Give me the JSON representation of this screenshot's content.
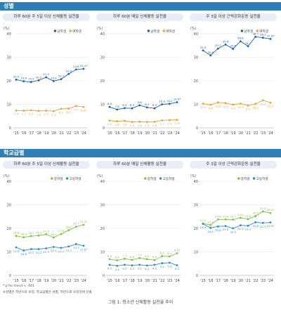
{
  "sections": [
    {
      "label": "성별"
    },
    {
      "label": "학교급별"
    }
  ],
  "chart_data": [
    {
      "type": "line",
      "title": "하루 60분 주 5일 이상 신체활동 실천율",
      "ylabel": "(%)",
      "ylim": [
        0,
        40
      ],
      "yticks": [
        0,
        10,
        20,
        30,
        40
      ],
      "categories": [
        "'15",
        "'16",
        "'17",
        "'18",
        "'19",
        "'20",
        "'21",
        "'22",
        "'23",
        "'24"
      ],
      "series": [
        {
          "name": "남학생",
          "color": "#1d5fa3",
          "values": [
            20.5,
            19.8,
            19.5,
            20.2,
            21.5,
            19.9,
            20.7,
            22.9,
            24.8,
            25.1
          ],
          "labels": [
            "20.5",
            "19.8",
            "19.5",
            "20.2",
            "21.5",
            "19.9",
            "20.7",
            "22.9",
            "24.8",
            "25.1*"
          ]
        },
        {
          "name": "여학생",
          "color": "#f0a030",
          "values": [
            7.4,
            7.3,
            7.5,
            7.2,
            7.3,
            7.1,
            8.1,
            8.2,
            9.3,
            8.9
          ],
          "labels": [
            "7.4",
            "7.3",
            "7.5",
            "7.2",
            "7.3",
            "7.1",
            "8.1",
            "8.2",
            "9.3",
            "8.9*"
          ]
        }
      ]
    },
    {
      "type": "line",
      "title": "하루 60분 매일 신체활동 실천율",
      "ylabel": "(%)",
      "ylim": [
        0,
        40
      ],
      "yticks": [
        0,
        10,
        20,
        30,
        40
      ],
      "categories": [
        "'15",
        "'16",
        "'17",
        "'18",
        "'19",
        "'20",
        "'21",
        "'22",
        "'23",
        "'24"
      ],
      "series": [
        {
          "name": "남학생",
          "color": "#1d5fa3",
          "values": [
            8.9,
            7.8,
            8.4,
            8.3,
            9.6,
            8.7,
            8.3,
            10.0,
            10.2,
            10.9
          ],
          "labels": [
            "8.9",
            "7.8",
            "8.4",
            "8.3",
            "9.6",
            "8.7",
            "8.3",
            "10.0",
            "10.2",
            "10.9*"
          ]
        },
        {
          "name": "여학생",
          "color": "#f0a030",
          "values": [
            3.1,
            2.8,
            3.0,
            2.5,
            2.6,
            2.5,
            2.6,
            3.2,
            3.3,
            3.4
          ],
          "labels": [
            "3.1",
            "2.8",
            "3.0",
            "2.5",
            "2.6",
            "2.5",
            "2.6",
            "3.2",
            "3.3",
            "3.4*"
          ]
        }
      ]
    },
    {
      "type": "line",
      "title": "주 3일 이상 근력강화운동 실천율",
      "ylabel": "(%)",
      "ylim": [
        0,
        40
      ],
      "yticks": [
        0,
        10,
        20,
        30,
        40
      ],
      "categories": [
        "'15",
        "'16",
        "'17",
        "'18",
        "'19",
        "'20",
        "'21",
        "'22",
        "'23",
        "'24"
      ],
      "series": [
        {
          "name": "남학생",
          "color": "#1d5fa3",
          "values": [
            32.9,
            30.8,
            33.7,
            35.4,
            33.6,
            36.8,
            34.7,
            38.7,
            38.3,
            37.8
          ],
          "labels": [
            "32.9",
            "30.8",
            "33.7",
            "35.4",
            "33.6",
            "36.8",
            "34.7",
            "38.7",
            "38.3",
            "37.8*"
          ]
        },
        {
          "name": "여학생",
          "color": "#f0a030",
          "values": [
            10.3,
            9.8,
            10.8,
            10.5,
            9.9,
            10.3,
            9.5,
            10.2,
            11.7,
            10.7
          ],
          "labels": [
            "10.3",
            "9.8",
            "10.8",
            "10.5",
            "9.9",
            "10.3",
            "9.5",
            "10.2",
            "11.7",
            "10.7"
          ]
        }
      ]
    },
    {
      "type": "line",
      "title": "하루 60분 주 5일 이상 신체활동 실천율",
      "ylabel": "(%)",
      "ylim": [
        0,
        40
      ],
      "yticks": [
        0,
        10,
        20,
        30,
        40
      ],
      "categories": [
        "'15",
        "'16",
        "'17",
        "'18",
        "'19",
        "'20",
        "'21",
        "'22",
        "'23",
        "'24"
      ],
      "series": [
        {
          "name": "중학생",
          "color": "#7cc242",
          "values": [
            16.8,
            16.2,
            16.7,
            16.9,
            17.5,
            16.1,
            17.6,
            19.2,
            20.7,
            21.5
          ],
          "labels": [
            "16.8",
            "16.2",
            "16.7",
            "16.9",
            "17.5",
            "16.1",
            "17.6",
            "19.2",
            "20.7",
            "21.5*"
          ]
        },
        {
          "name": "고등학생",
          "color": "#2a8ccd",
          "values": [
            11.9,
            10.6,
            11.2,
            11.2,
            11.5,
            12.1,
            11.7,
            12.3,
            13.3,
            12.6
          ],
          "labels": [
            "11.9",
            "10.6",
            "11.2",
            "11.2",
            "11.5",
            "12.1",
            "11.7",
            "12.3",
            "13.3",
            "12.6*"
          ]
        }
      ]
    },
    {
      "type": "line",
      "title": "하루 60분 매일 신체활동 실천율",
      "ylabel": "(%)",
      "ylim": [
        0,
        40
      ],
      "yticks": [
        0,
        10,
        20,
        30,
        40
      ],
      "categories": [
        "'15",
        "'16",
        "'17",
        "'18",
        "'19",
        "'20",
        "'21",
        "'22",
        "'23",
        "'24"
      ],
      "series": [
        {
          "name": "중학생",
          "color": "#7cc242",
          "values": [
            6.9,
            6.4,
            7.1,
            6.6,
            7.4,
            6.9,
            6.5,
            8.2,
            8.1,
            9.4
          ],
          "labels": [
            "6.9",
            "6.4",
            "7.1",
            "6.6",
            "7.4",
            "6.9",
            "6.5",
            "8.2",
            "8.1",
            "9.4*"
          ]
        },
        {
          "name": "고등학생",
          "color": "#2a8ccd",
          "values": [
            4.5,
            4.1,
            4.5,
            4.3,
            4.5,
            4.2,
            4.5,
            5.2,
            5.4,
            4.3
          ],
          "labels": [
            "4.5",
            "4.1",
            "4.5",
            "4.3",
            "4.5",
            "4.2",
            "4.5",
            "5.2",
            "5.4",
            "4.3"
          ]
        }
      ]
    },
    {
      "type": "line",
      "title": "주 3일 이상 근력강화운동 실천율",
      "ylabel": "(%)",
      "ylim": [
        0,
        40
      ],
      "yticks": [
        0,
        10,
        20,
        30,
        40
      ],
      "categories": [
        "'15",
        "'16",
        "'17",
        "'18",
        "'19",
        "'20",
        "'21",
        "'22",
        "'23",
        "'24"
      ],
      "series": [
        {
          "name": "중학생",
          "color": "#7cc242",
          "values": [
            22.1,
            21.4,
            23.8,
            23.8,
            23.7,
            24.5,
            23.9,
            25.2,
            27.2,
            26.5
          ],
          "labels": [
            "22.1",
            "21.4",
            "23.8",
            "23.8",
            "23.7",
            "24.5",
            "23.9",
            "25.2",
            "27.2",
            "26.5*"
          ]
        },
        {
          "name": "고등학생",
          "color": "#2a8ccd",
          "values": [
            21.9,
            20.2,
            20.8,
            21.0,
            20.0,
            21.3,
            21.1,
            22.6,
            22.3,
            22.5
          ],
          "labels": [
            "21.9",
            "20.2",
            "20.8",
            "21.0",
            "20.0",
            "21.3",
            "21.1",
            "22.6",
            "22.3",
            "22.5*"
          ]
        }
      ]
    }
  ],
  "footnotes": {
    "line1": "* p for trend < .001",
    "line2": "※성별은 학년으로 보정, 학교급별은 성별, 학년으로 보정하여 산출"
  },
  "caption": "그림 1. 청소년 신체활동 실천율 추이"
}
